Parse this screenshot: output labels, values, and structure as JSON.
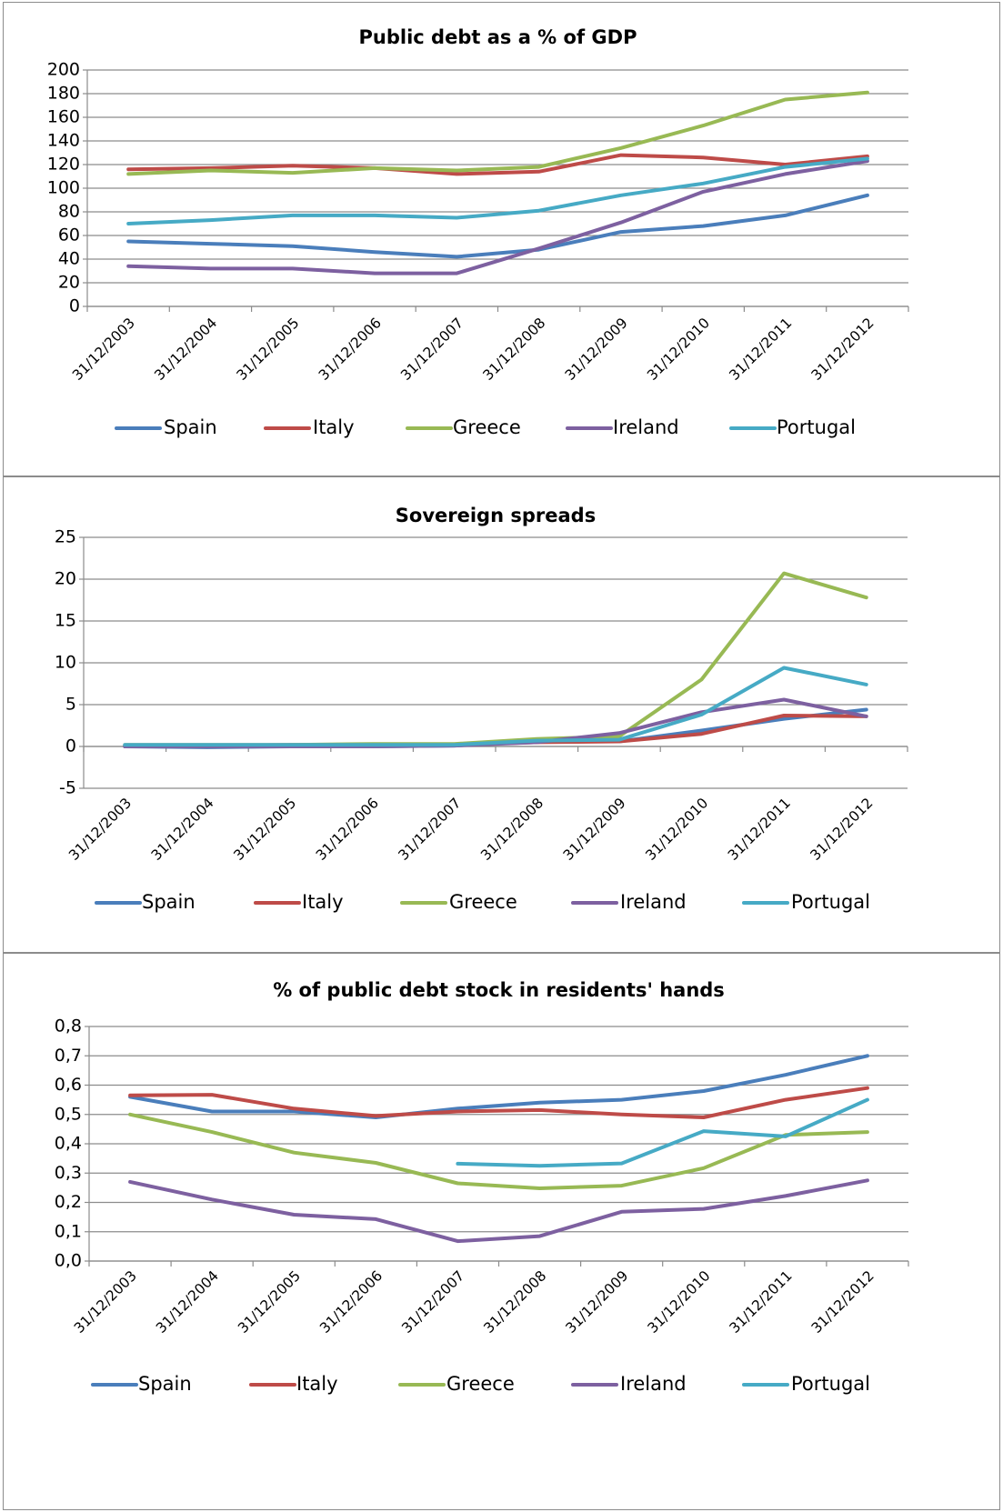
{
  "colors": {
    "Spain": "#4a7ebb",
    "Italy": "#be4b48",
    "Greece": "#98b954",
    "Ireland": "#7d60a0",
    "Portugal": "#46aac5"
  },
  "chart_data": [
    {
      "type": "line",
      "title": "Public debt as a % of GDP",
      "categories": [
        "31/12/2003",
        "31/12/2004",
        "31/12/2005",
        "31/12/2006",
        "31/12/2007",
        "31/12/2008",
        "31/12/2009",
        "31/12/2010",
        "31/12/2011",
        "31/12/2012"
      ],
      "yticks": [
        "0",
        "20",
        "40",
        "60",
        "80",
        "100",
        "120",
        "140",
        "160",
        "180",
        "200"
      ],
      "ylim": [
        0,
        200
      ],
      "ytick_values": [
        0,
        20,
        40,
        60,
        80,
        100,
        120,
        140,
        160,
        180,
        200
      ],
      "grid": true,
      "legend": "bottom",
      "series": [
        {
          "name": "Spain",
          "values": [
            55,
            53,
            51,
            46,
            42,
            48,
            63,
            68,
            77,
            94
          ]
        },
        {
          "name": "Italy",
          "values": [
            116,
            117,
            119,
            117,
            112,
            114,
            128,
            126,
            120,
            127
          ]
        },
        {
          "name": "Greece",
          "values": [
            112,
            115,
            113,
            117,
            115,
            118,
            134,
            153,
            175,
            181
          ]
        },
        {
          "name": "Ireland",
          "values": [
            34,
            32,
            32,
            28,
            28,
            49,
            71,
            97,
            112,
            123
          ]
        },
        {
          "name": "Portugal",
          "values": [
            70,
            73,
            77,
            77,
            75,
            81,
            94,
            104,
            118,
            125
          ]
        }
      ]
    },
    {
      "type": "line",
      "title": "Sovereign spreads",
      "categories": [
        "31/12/2003",
        "31/12/2004",
        "31/12/2005",
        "31/12/2006",
        "31/12/2007",
        "31/12/2008",
        "31/12/2009",
        "31/12/2010",
        "31/12/2011",
        "31/12/2012"
      ],
      "yticks": [
        "-5",
        "0",
        "5",
        "10",
        "15",
        "20",
        "25"
      ],
      "ylim": [
        -5,
        25
      ],
      "ytick_values": [
        -5,
        0,
        5,
        10,
        15,
        20,
        25
      ],
      "grid": true,
      "legend": "bottom",
      "series": [
        {
          "name": "Spain",
          "values": [
            0.0,
            -0.1,
            0.0,
            0.0,
            0.1,
            0.6,
            0.6,
            1.9,
            3.3,
            4.4
          ]
        },
        {
          "name": "Italy",
          "values": [
            0.1,
            0.1,
            0.2,
            0.2,
            0.2,
            0.5,
            0.6,
            1.5,
            3.7,
            3.6
          ]
        },
        {
          "name": "Greece",
          "values": [
            0.2,
            0.2,
            0.2,
            0.3,
            0.3,
            0.9,
            1.2,
            8.0,
            20.7,
            17.8
          ]
        },
        {
          "name": "Ireland",
          "values": [
            0.0,
            0.0,
            0.0,
            0.0,
            0.1,
            0.5,
            1.6,
            4.1,
            5.6,
            3.6
          ]
        },
        {
          "name": "Portugal",
          "values": [
            0.2,
            0.2,
            0.2,
            0.2,
            0.2,
            0.7,
            0.8,
            3.8,
            9.4,
            7.4
          ]
        }
      ]
    },
    {
      "type": "line",
      "title": "% of public debt stock in residents' hands",
      "categories": [
        "31/12/2003",
        "31/12/2004",
        "31/12/2005",
        "31/12/2006",
        "31/12/2007",
        "31/12/2008",
        "31/12/2009",
        "31/12/2010",
        "31/12/2011",
        "31/12/2012"
      ],
      "yticks": [
        "0,0",
        "0,1",
        "0,2",
        "0,3",
        "0,4",
        "0,5",
        "0,6",
        "0,7",
        "0,8"
      ],
      "ylim": [
        0,
        0.8
      ],
      "ytick_values": [
        0,
        0.1,
        0.2,
        0.3,
        0.4,
        0.5,
        0.6,
        0.7,
        0.8
      ],
      "grid": true,
      "legend": "bottom",
      "series": [
        {
          "name": "Spain",
          "values": [
            0.56,
            0.51,
            0.51,
            0.49,
            0.52,
            0.54,
            0.55,
            0.58,
            0.635,
            0.7
          ]
        },
        {
          "name": "Italy",
          "values": [
            0.565,
            0.567,
            0.52,
            0.495,
            0.51,
            0.515,
            0.5,
            0.49,
            0.55,
            0.59
          ]
        },
        {
          "name": "Greece",
          "values": [
            0.5,
            0.44,
            0.37,
            0.335,
            0.265,
            0.248,
            0.257,
            0.317,
            0.43,
            0.44
          ]
        },
        {
          "name": "Ireland",
          "values": [
            0.27,
            0.21,
            0.158,
            0.143,
            0.068,
            0.085,
            0.168,
            0.178,
            0.222,
            0.275
          ]
        },
        {
          "name": "Portugal",
          "values": [
            null,
            null,
            null,
            null,
            0.332,
            0.325,
            0.333,
            0.443,
            0.425,
            0.55
          ]
        }
      ]
    }
  ]
}
